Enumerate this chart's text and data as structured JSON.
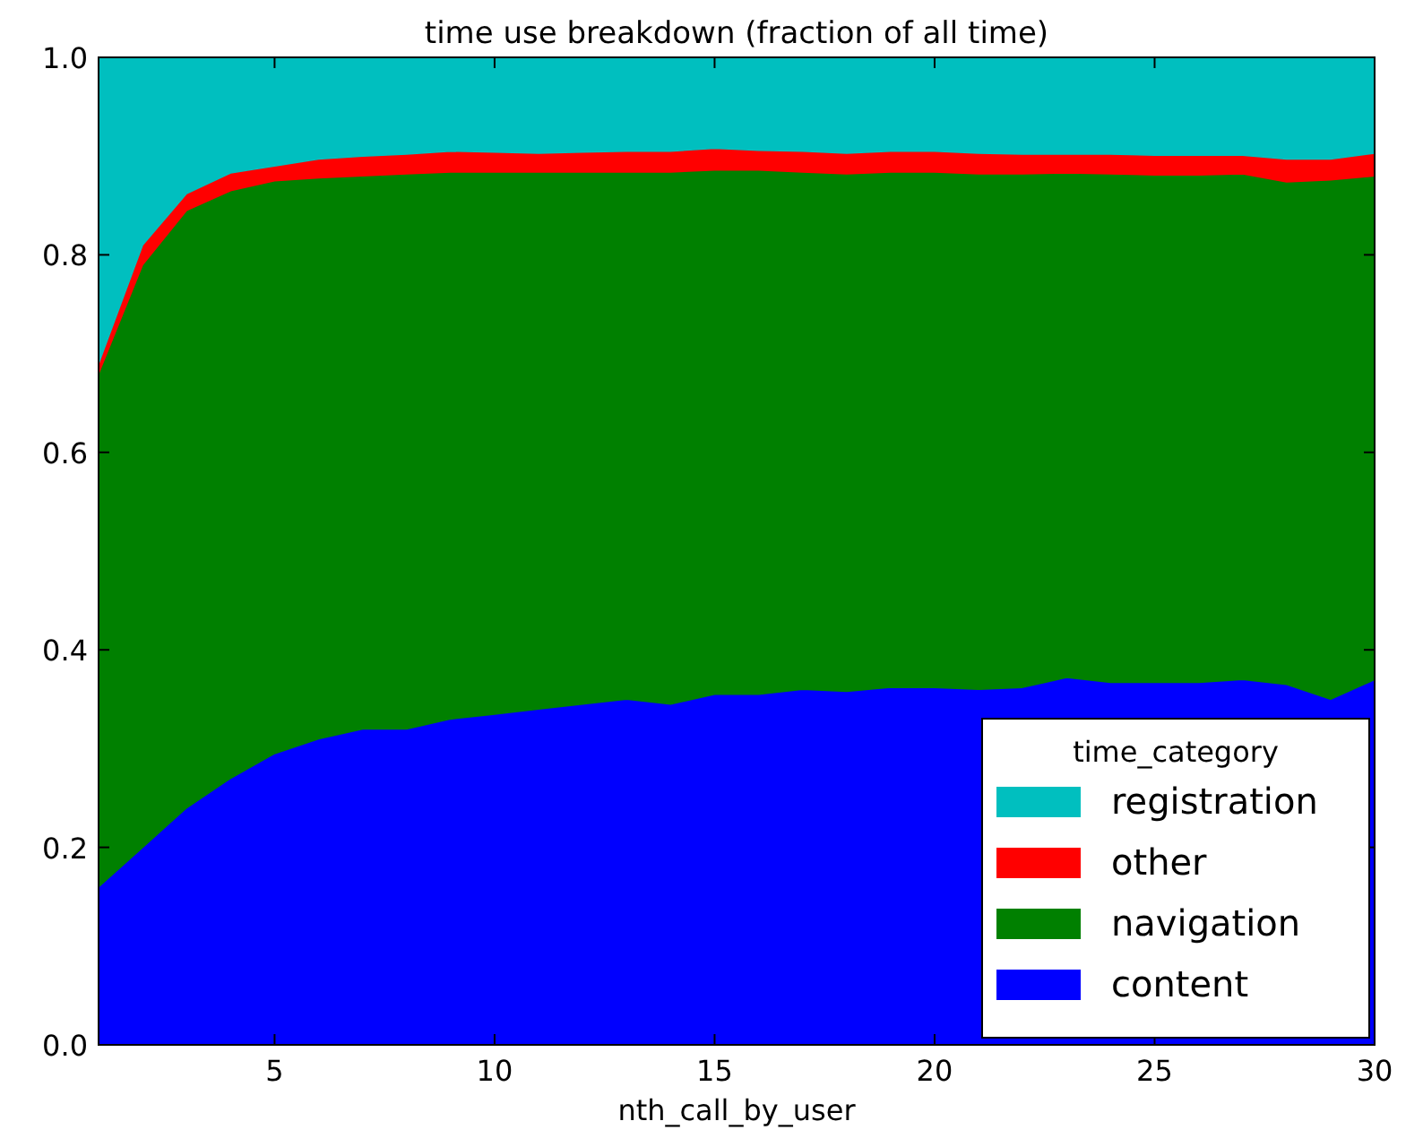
{
  "chart_data": {
    "type": "area",
    "stacked": true,
    "title": "time use breakdown (fraction of all time)",
    "xlabel": "nth_call_by_user",
    "legend_title": "time_category",
    "legend": "bottom right",
    "grid": false,
    "x": [
      1,
      2,
      3,
      4,
      5,
      6,
      7,
      8,
      9,
      10,
      11,
      12,
      13,
      14,
      15,
      16,
      17,
      18,
      19,
      20,
      21,
      22,
      23,
      24,
      25,
      26,
      27,
      28,
      29,
      30
    ],
    "xlim": [
      1,
      30
    ],
    "xticks": [
      5,
      10,
      15,
      20,
      25,
      30
    ],
    "ylim": [
      0,
      1
    ],
    "yticks": [
      {
        "value": 0,
        "label": "0.0"
      },
      {
        "value": 0.2,
        "label": "0.2"
      },
      {
        "value": 0.4,
        "label": "0.4"
      },
      {
        "value": 0.6,
        "label": "0.6"
      },
      {
        "value": 0.8,
        "label": "0.8"
      },
      {
        "value": 1,
        "label": "1.0"
      }
    ],
    "series": [
      {
        "name": "content",
        "color": "#0000ff",
        "values": [
          0.16,
          0.2,
          0.24,
          0.27,
          0.295,
          0.31,
          0.32,
          0.32,
          0.33,
          0.335,
          0.34,
          0.345,
          0.35,
          0.345,
          0.355,
          0.355,
          0.36,
          0.358,
          0.362,
          0.362,
          0.36,
          0.362,
          0.372,
          0.367,
          0.367,
          0.367,
          0.37,
          0.365,
          0.35,
          0.37
        ]
      },
      {
        "name": "navigation",
        "color": "#008000",
        "values": [
          0.52,
          0.59,
          0.605,
          0.595,
          0.58,
          0.568,
          0.56,
          0.562,
          0.554,
          0.549,
          0.544,
          0.539,
          0.534,
          0.539,
          0.531,
          0.531,
          0.524,
          0.524,
          0.522,
          0.522,
          0.522,
          0.52,
          0.511,
          0.515,
          0.514,
          0.514,
          0.512,
          0.509,
          0.526,
          0.51
        ]
      },
      {
        "name": "other",
        "color": "#ff0000",
        "values": [
          0.01,
          0.02,
          0.017,
          0.018,
          0.015,
          0.019,
          0.02,
          0.02,
          0.021,
          0.02,
          0.019,
          0.02,
          0.021,
          0.021,
          0.022,
          0.02,
          0.021,
          0.021,
          0.021,
          0.021,
          0.021,
          0.02,
          0.019,
          0.02,
          0.02,
          0.02,
          0.019,
          0.023,
          0.021,
          0.023
        ]
      },
      {
        "name": "registration",
        "color": "#00bfbf",
        "values": [
          0.31,
          0.19,
          0.138,
          0.117,
          0.11,
          0.103,
          0.1,
          0.098,
          0.095,
          0.096,
          0.097,
          0.096,
          0.095,
          0.095,
          0.092,
          0.094,
          0.095,
          0.097,
          0.095,
          0.095,
          0.097,
          0.098,
          0.098,
          0.098,
          0.099,
          0.099,
          0.099,
          0.103,
          0.103,
          0.097
        ]
      }
    ]
  }
}
